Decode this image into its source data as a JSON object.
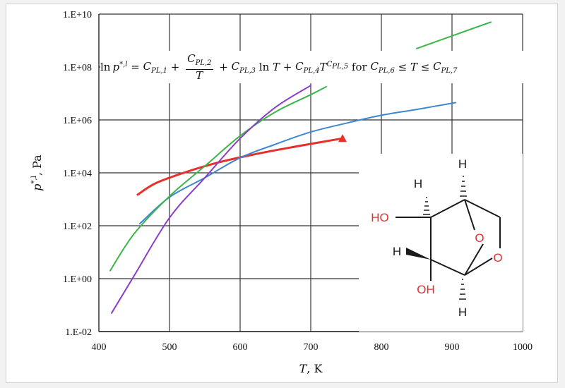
{
  "chart_data": {
    "type": "line",
    "xlabel_var": "T",
    "xlabel_unit": ", K",
    "ylabel_var": "p",
    "ylabel_sup": "*,l",
    "ylabel_unit": ", Pa",
    "xlim": [
      400,
      1000
    ],
    "ylim_log10": [
      -2,
      10
    ],
    "y_scale": "log",
    "grid": true,
    "x_ticks": [
      "400",
      "500",
      "600",
      "700",
      "800",
      "900",
      "1000"
    ],
    "y_ticks": [
      "1.E-02",
      "1.E+00",
      "1.E+02",
      "1.E+04",
      "1.E+06",
      "1.E+08",
      "1.E+10"
    ],
    "series": [
      {
        "color": "#e8302a",
        "marker": "triangle-end",
        "points": [
          [
            455,
            1500.0
          ],
          [
            480,
            4000.0
          ],
          [
            520,
            10000.0
          ],
          [
            570,
            25000.0
          ],
          [
            620,
            50000.0
          ],
          [
            680,
            100000.0
          ],
          [
            745,
            200000.0
          ]
        ]
      },
      {
        "color": "#3f87d0",
        "points": [
          [
            458,
            120.0
          ],
          [
            500,
            1200.0
          ],
          [
            550,
            6500.0
          ],
          [
            600,
            37000.0
          ],
          [
            650,
            120000.0
          ],
          [
            700,
            350000.0
          ],
          [
            750,
            750000.0
          ],
          [
            800,
            1500000.0
          ],
          [
            850,
            2500000.0
          ],
          [
            905,
            4500000.0
          ]
        ]
      },
      {
        "color": "#3cb54a",
        "points": [
          [
            416,
            2
          ],
          [
            450,
            50
          ],
          [
            500,
            1300.0
          ],
          [
            550,
            18000.0
          ],
          [
            600,
            250000.0
          ],
          [
            650,
            2000000.0
          ],
          [
            700,
            9000000.0
          ],
          [
            722,
            18000000.0
          ]
        ]
      },
      {
        "color": "#3cb54a",
        "points": [
          [
            850,
            500000000.0
          ],
          [
            900,
            1500000000.0
          ],
          [
            955,
            5000000000.0
          ]
        ]
      },
      {
        "color": "#8a3fc8",
        "points": [
          [
            418,
            0.05
          ],
          [
            450,
            1.3
          ],
          [
            500,
            200.0
          ],
          [
            550,
            6500.0
          ],
          [
            600,
            200000.0
          ],
          [
            650,
            3000000.0
          ],
          [
            700,
            20000000.0
          ]
        ]
      }
    ]
  },
  "equation": {
    "lhs": "ln p",
    "lhs_sup": "*,l",
    "eq": " = ",
    "c": "C",
    "sub1": "PL,1",
    "plus": " + ",
    "sub2": "PL,2",
    "den": "T",
    "sub3": "PL,3",
    "ln_t": " ln T",
    "sub4": "PL,4",
    "t": "T",
    "sub5": "PL,5",
    "for": " for ",
    "sub6": "PL,6",
    "le1": " ≤ T ≤ ",
    "sub7": "PL,7"
  },
  "molecule": {
    "atom_h": "H",
    "atom_ho": "HO",
    "atom_oh": "OH",
    "atom_o": "O",
    "bond_color": "#1a1a1a",
    "oxygen_color": "#e03030"
  }
}
